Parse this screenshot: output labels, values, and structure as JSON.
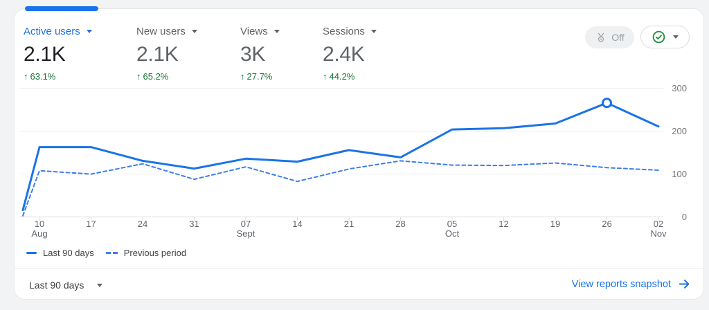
{
  "colors": {
    "accent_blue": "#1a73e8",
    "dashed_blue": "#3d7ded",
    "positive_green": "#137333",
    "grid_gray": "#eceef1",
    "axis_gray": "#dadce0"
  },
  "icons": {
    "up_arrow": "↑"
  },
  "metrics": [
    {
      "label": "Active users",
      "value": "2.1K",
      "change": "63.1%",
      "active": true
    },
    {
      "label": "New users",
      "value": "2.1K",
      "change": "65.2%",
      "active": false
    },
    {
      "label": "Views",
      "value": "3K",
      "change": "27.7%",
      "active": false
    },
    {
      "label": "Sessions",
      "value": "2.4K",
      "change": "44.2%",
      "active": false
    }
  ],
  "controls": {
    "insights_pill_label": "Off"
  },
  "chart_data": {
    "type": "line",
    "title": "Active users trend, last 90 days vs previous period",
    "x_tick_labels": [
      {
        "day": "10",
        "month": "Aug"
      },
      {
        "day": "17",
        "month": ""
      },
      {
        "day": "24",
        "month": ""
      },
      {
        "day": "31",
        "month": ""
      },
      {
        "day": "07",
        "month": "Sept"
      },
      {
        "day": "14",
        "month": ""
      },
      {
        "day": "21",
        "month": ""
      },
      {
        "day": "28",
        "month": ""
      },
      {
        "day": "05",
        "month": "Oct"
      },
      {
        "day": "12",
        "month": ""
      },
      {
        "day": "19",
        "month": ""
      },
      {
        "day": "26",
        "month": ""
      },
      {
        "day": "02",
        "month": "Nov"
      }
    ],
    "has_edge_start_point": true,
    "series": [
      {
        "name": "Last 90 days",
        "style": "solid",
        "values": [
          15,
          162,
          162,
          130,
          112,
          135,
          128,
          155,
          138,
          203,
          206,
          217,
          265,
          210
        ]
      },
      {
        "name": "Previous period",
        "style": "dashed",
        "values": [
          2,
          107,
          99,
          123,
          87,
          116,
          82,
          111,
          130,
          120,
          119,
          125,
          114,
          108
        ]
      }
    ],
    "marker_point": {
      "series": "Last 90 days",
      "x_label": "26",
      "value": 265
    },
    "ylim": [
      0,
      300
    ],
    "yticks": [
      0,
      100,
      200,
      300
    ],
    "grid": "horizontal-only",
    "legend_position": "bottom-left"
  },
  "footer": {
    "date_range_label": "Last 90 days",
    "link_label": "View reports snapshot"
  }
}
